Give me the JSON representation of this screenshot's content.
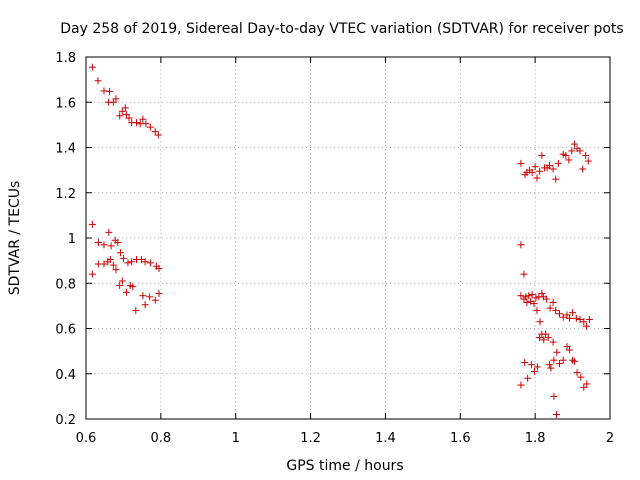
{
  "chart_data": {
    "type": "scatter",
    "title": "Day 258 of 2019, Sidereal Day-to-day VTEC variation (SDTVAR) for receiver pots",
    "xlabel": "GPS time / hours",
    "ylabel": "SDTVAR / TECUs",
    "xlim": [
      0.6,
      2.0
    ],
    "ylim": [
      0.2,
      1.8
    ],
    "xticks": [
      "0.6",
      "0.8",
      "1",
      "1.2",
      "1.4",
      "1.6",
      "1.8",
      "2"
    ],
    "yticks": [
      "0.2",
      "0.4",
      "0.6",
      "0.8",
      "1",
      "1.2",
      "1.4",
      "1.6",
      "1.8"
    ],
    "grid": true,
    "marker": "+",
    "series_color": "#cc0000",
    "series": [
      {
        "name": "SDTVAR",
        "points": [
          [
            0.617,
            1.755
          ],
          [
            0.632,
            1.695
          ],
          [
            0.648,
            1.65
          ],
          [
            0.663,
            1.648
          ],
          [
            0.66,
            1.6
          ],
          [
            0.673,
            1.6
          ],
          [
            0.68,
            1.615
          ],
          [
            0.69,
            1.54
          ],
          [
            0.697,
            1.56
          ],
          [
            0.705,
            1.575
          ],
          [
            0.708,
            1.545
          ],
          [
            0.715,
            1.53
          ],
          [
            0.722,
            1.51
          ],
          [
            0.735,
            1.51
          ],
          [
            0.745,
            1.505
          ],
          [
            0.752,
            1.525
          ],
          [
            0.76,
            1.505
          ],
          [
            0.772,
            1.49
          ],
          [
            0.785,
            1.47
          ],
          [
            0.793,
            1.455
          ],
          [
            0.617,
            1.06
          ],
          [
            0.633,
            0.98
          ],
          [
            0.648,
            0.97
          ],
          [
            0.661,
            1.025
          ],
          [
            0.667,
            0.965
          ],
          [
            0.678,
            0.99
          ],
          [
            0.685,
            0.98
          ],
          [
            0.692,
            0.935
          ],
          [
            0.7,
            0.91
          ],
          [
            0.617,
            0.84
          ],
          [
            0.633,
            0.885
          ],
          [
            0.648,
            0.885
          ],
          [
            0.658,
            0.895
          ],
          [
            0.665,
            0.905
          ],
          [
            0.673,
            0.88
          ],
          [
            0.68,
            0.86
          ],
          [
            0.712,
            0.89
          ],
          [
            0.722,
            0.895
          ],
          [
            0.735,
            0.905
          ],
          [
            0.748,
            0.905
          ],
          [
            0.758,
            0.895
          ],
          [
            0.772,
            0.89
          ],
          [
            0.788,
            0.875
          ],
          [
            0.795,
            0.865
          ],
          [
            0.69,
            0.79
          ],
          [
            0.697,
            0.81
          ],
          [
            0.708,
            0.76
          ],
          [
            0.718,
            0.79
          ],
          [
            0.725,
            0.785
          ],
          [
            0.733,
            0.68
          ],
          [
            0.752,
            0.745
          ],
          [
            0.758,
            0.705
          ],
          [
            0.77,
            0.74
          ],
          [
            0.785,
            0.725
          ],
          [
            0.795,
            0.755
          ],
          [
            1.762,
            1.33
          ],
          [
            1.773,
            1.28
          ],
          [
            1.778,
            1.29
          ],
          [
            1.785,
            1.3
          ],
          [
            1.792,
            1.29
          ],
          [
            1.8,
            1.315
          ],
          [
            1.805,
            1.265
          ],
          [
            1.812,
            1.295
          ],
          [
            1.818,
            1.365
          ],
          [
            1.825,
            1.31
          ],
          [
            1.832,
            1.31
          ],
          [
            1.838,
            1.32
          ],
          [
            1.848,
            1.305
          ],
          [
            1.855,
            1.26
          ],
          [
            1.862,
            1.33
          ],
          [
            1.875,
            1.37
          ],
          [
            1.882,
            1.365
          ],
          [
            1.89,
            1.345
          ],
          [
            1.898,
            1.385
          ],
          [
            1.905,
            1.415
          ],
          [
            1.912,
            1.395
          ],
          [
            1.92,
            1.385
          ],
          [
            1.927,
            1.305
          ],
          [
            1.935,
            1.365
          ],
          [
            1.942,
            1.34
          ],
          [
            1.762,
            0.97
          ],
          [
            1.77,
            0.84
          ],
          [
            1.762,
            0.745
          ],
          [
            1.77,
            0.73
          ],
          [
            1.775,
            0.74
          ],
          [
            1.778,
            0.715
          ],
          [
            1.783,
            0.745
          ],
          [
            1.788,
            0.72
          ],
          [
            1.792,
            0.75
          ],
          [
            1.797,
            0.71
          ],
          [
            1.802,
            0.735
          ],
          [
            1.805,
            0.68
          ],
          [
            1.81,
            0.74
          ],
          [
            1.813,
            0.63
          ],
          [
            1.818,
            0.755
          ],
          [
            1.822,
            0.74
          ],
          [
            1.83,
            0.73
          ],
          [
            1.84,
            0.69
          ],
          [
            1.848,
            0.715
          ],
          [
            1.855,
            0.68
          ],
          [
            1.865,
            0.665
          ],
          [
            1.875,
            0.65
          ],
          [
            1.885,
            0.66
          ],
          [
            1.892,
            0.645
          ],
          [
            1.9,
            0.67
          ],
          [
            1.91,
            0.645
          ],
          [
            1.92,
            0.64
          ],
          [
            1.93,
            0.63
          ],
          [
            1.937,
            0.61
          ],
          [
            1.945,
            0.64
          ],
          [
            1.812,
            0.56
          ],
          [
            1.818,
            0.575
          ],
          [
            1.823,
            0.55
          ],
          [
            1.828,
            0.575
          ],
          [
            1.835,
            0.56
          ],
          [
            1.848,
            0.54
          ],
          [
            1.762,
            0.35
          ],
          [
            1.772,
            0.45
          ],
          [
            1.78,
            0.38
          ],
          [
            1.79,
            0.44
          ],
          [
            1.798,
            0.41
          ],
          [
            1.806,
            0.43
          ],
          [
            1.838,
            0.44
          ],
          [
            1.842,
            0.425
          ],
          [
            1.85,
            0.46
          ],
          [
            1.858,
            0.495
          ],
          [
            1.865,
            0.445
          ],
          [
            1.875,
            0.46
          ],
          [
            1.885,
            0.52
          ],
          [
            1.892,
            0.505
          ],
          [
            1.9,
            0.46
          ],
          [
            1.905,
            0.455
          ],
          [
            1.912,
            0.405
          ],
          [
            1.922,
            0.385
          ],
          [
            1.93,
            0.34
          ],
          [
            1.938,
            0.355
          ],
          [
            1.85,
            0.3
          ],
          [
            1.857,
            0.22
          ]
        ]
      }
    ]
  }
}
